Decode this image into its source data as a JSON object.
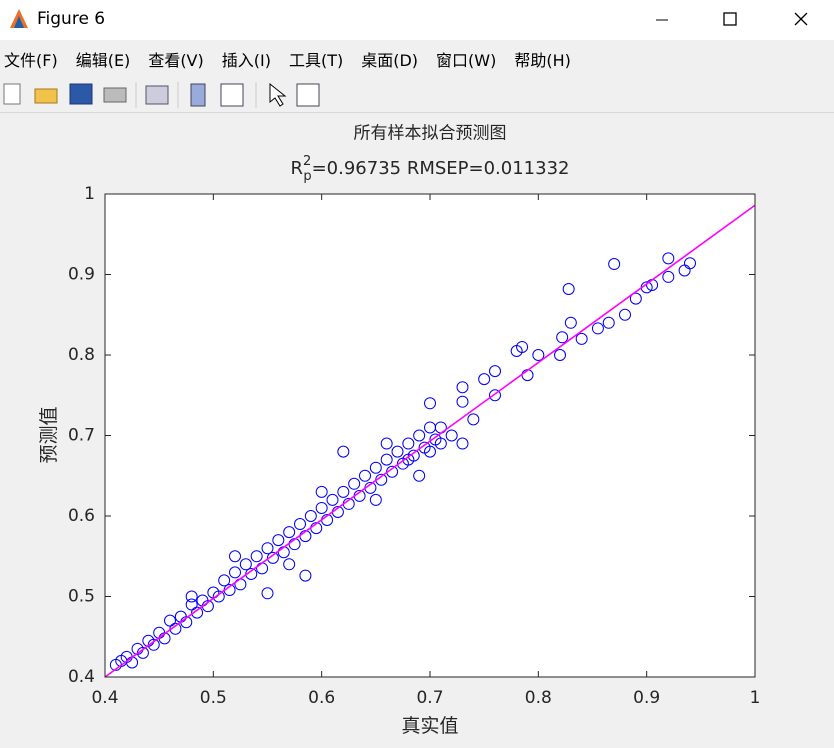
{
  "window": {
    "title": "Figure 6"
  },
  "menu": [
    "文件(F)",
    "编辑(E)",
    "查看(V)",
    "插入(I)",
    "工具(T)",
    "桌面(D)",
    "窗口(W)",
    "帮助(H)"
  ],
  "chart_data": {
    "type": "scatter",
    "title": "所有样本拟合预测图",
    "subtitle": {
      "base": "R",
      "sup": "2",
      "sub": "p",
      "text": "=0.96735  RMSEP=0.011332"
    },
    "xlabel": "真实值",
    "ylabel": "预测值",
    "xlim": [
      0.4,
      1
    ],
    "ylim": [
      0.4,
      1
    ],
    "xticks": [
      0.4,
      0.5,
      0.6,
      0.7,
      0.8,
      0.9,
      1
    ],
    "yticks": [
      0.4,
      0.5,
      0.6,
      0.7,
      0.8,
      0.9,
      1
    ],
    "series": [
      {
        "color": "#0000ff",
        "x": [
          0.41,
          0.415,
          0.42,
          0.425,
          0.43,
          0.435,
          0.44,
          0.445,
          0.45,
          0.455,
          0.46,
          0.465,
          0.47,
          0.475,
          0.48,
          0.485,
          0.49,
          0.495,
          0.5,
          0.505,
          0.51,
          0.515,
          0.52,
          0.525,
          0.53,
          0.535,
          0.54,
          0.545,
          0.55,
          0.555,
          0.56,
          0.565,
          0.57,
          0.575,
          0.58,
          0.585,
          0.59,
          0.595,
          0.6,
          0.605,
          0.61,
          0.615,
          0.62,
          0.625,
          0.63,
          0.635,
          0.64,
          0.645,
          0.65,
          0.655,
          0.66,
          0.665,
          0.67,
          0.675,
          0.68,
          0.685,
          0.69,
          0.695,
          0.7,
          0.705,
          0.57,
          0.6,
          0.52,
          0.65,
          0.48,
          0.66,
          0.87,
          0.828,
          0.92,
          0.94,
          0.935,
          0.92,
          0.9,
          0.905,
          0.89,
          0.88,
          0.865,
          0.855,
          0.84,
          0.83,
          0.822,
          0.82,
          0.8,
          0.79,
          0.785,
          0.78,
          0.76,
          0.75,
          0.73,
          0.73,
          0.74,
          0.76,
          0.7,
          0.62,
          0.585,
          0.55,
          0.72,
          0.71,
          0.73,
          0.69,
          0.71,
          0.7,
          0.68
        ],
        "y": [
          0.415,
          0.42,
          0.425,
          0.418,
          0.435,
          0.43,
          0.445,
          0.44,
          0.455,
          0.448,
          0.47,
          0.46,
          0.475,
          0.468,
          0.49,
          0.48,
          0.495,
          0.488,
          0.505,
          0.5,
          0.52,
          0.508,
          0.53,
          0.515,
          0.54,
          0.528,
          0.55,
          0.535,
          0.56,
          0.548,
          0.57,
          0.555,
          0.58,
          0.565,
          0.59,
          0.575,
          0.6,
          0.585,
          0.61,
          0.595,
          0.62,
          0.605,
          0.63,
          0.615,
          0.64,
          0.625,
          0.65,
          0.635,
          0.66,
          0.645,
          0.67,
          0.655,
          0.68,
          0.665,
          0.69,
          0.675,
          0.7,
          0.685,
          0.71,
          0.695,
          0.54,
          0.63,
          0.55,
          0.62,
          0.5,
          0.69,
          0.913,
          0.882,
          0.92,
          0.914,
          0.905,
          0.897,
          0.884,
          0.887,
          0.87,
          0.85,
          0.84,
          0.833,
          0.82,
          0.84,
          0.822,
          0.8,
          0.8,
          0.775,
          0.81,
          0.805,
          0.78,
          0.77,
          0.76,
          0.742,
          0.72,
          0.75,
          0.74,
          0.68,
          0.526,
          0.504,
          0.7,
          0.69,
          0.69,
          0.65,
          0.71,
          0.68,
          0.67
        ]
      }
    ],
    "lines": [
      {
        "color": "#ff00ff",
        "x": [
          0.4,
          1
        ],
        "y": [
          0.4,
          0.986
        ]
      }
    ]
  }
}
